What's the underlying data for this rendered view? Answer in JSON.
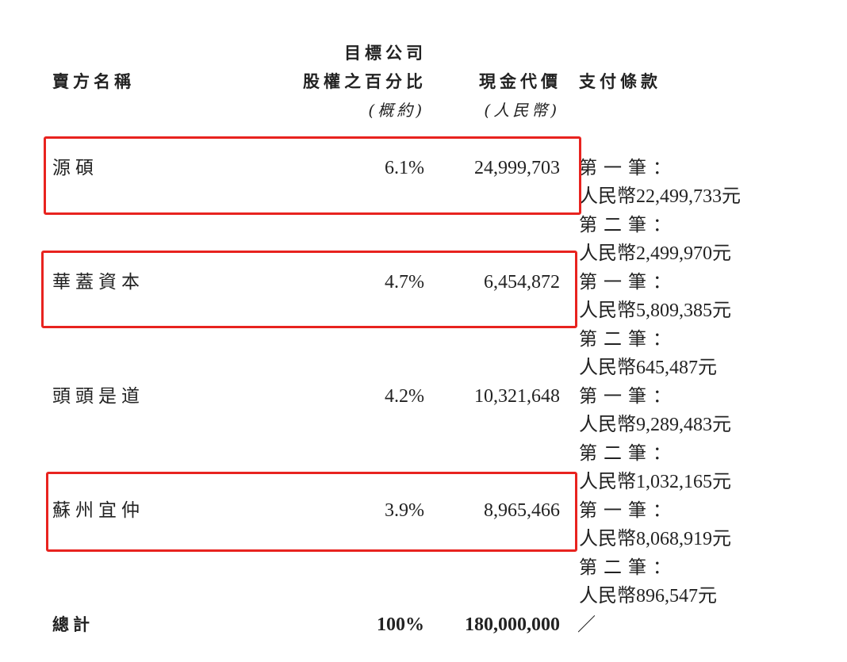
{
  "header": {
    "seller": "賣方名稱",
    "equity_line1": "目標公司",
    "equity_line2": "股權之百分比",
    "equity_line3": "(概約)",
    "cash_line1": "現金代價",
    "cash_line2": "(人民幣)",
    "payment": "支付條款"
  },
  "rows": [
    {
      "seller": "源碩",
      "percent": "6.1%",
      "cash": "24,999,703",
      "highlighted": true,
      "payments": [
        {
          "label": "第一筆：",
          "amount": "人民幣22,499,733元"
        },
        {
          "label": "第二筆：",
          "amount": "人民幣2,499,970元"
        }
      ]
    },
    {
      "seller": "華蓋資本",
      "percent": "4.7%",
      "cash": "6,454,872",
      "highlighted": true,
      "payments": [
        {
          "label": "第一筆：",
          "amount": "人民幣5,809,385元"
        },
        {
          "label": "第二筆：",
          "amount": "人民幣645,487元"
        }
      ]
    },
    {
      "seller": "頭頭是道",
      "percent": "4.2%",
      "cash": "10,321,648",
      "highlighted": false,
      "payments": [
        {
          "label": "第一筆：",
          "amount": "人民幣9,289,483元"
        },
        {
          "label": "第二筆：",
          "amount": "人民幣1,032,165元"
        }
      ]
    },
    {
      "seller": "蘇州宜仲",
      "percent": "3.9%",
      "cash": "8,965,466",
      "highlighted": true,
      "payments": [
        {
          "label": "第一筆：",
          "amount": "人民幣8,068,919元"
        },
        {
          "label": "第二筆：",
          "amount": "人民幣896,547元"
        }
      ]
    }
  ],
  "total": {
    "label": "總計",
    "percent": "100%",
    "cash": "180,000,000",
    "payment": "／"
  },
  "highlight_color": "#e8231f"
}
